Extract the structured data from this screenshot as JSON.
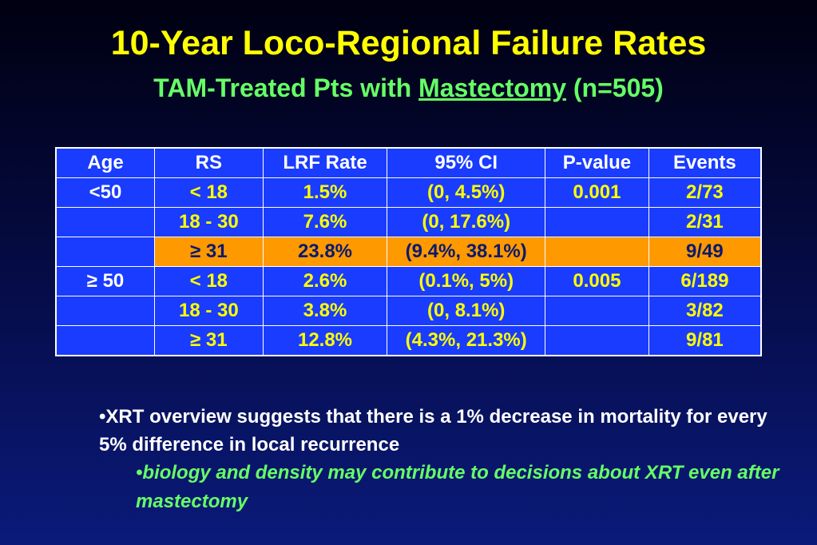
{
  "title": "10-Year Loco-Regional Failure Rates",
  "subtitle": {
    "prefix": "TAM-Treated Pts with ",
    "underlined": "Mastectomy",
    "suffix": " (n=505)"
  },
  "table": {
    "headers": [
      "Age",
      "RS",
      "LRF Rate",
      "95% CI",
      "P-value",
      "Events"
    ],
    "rows": [
      {
        "age": "<50",
        "rs": "< 18",
        "lrf": "1.5%",
        "ci": "(0, 4.5%)",
        "p": "0.001",
        "events": "2/73"
      },
      {
        "age": "",
        "rs": "18 - 30",
        "lrf": "7.6%",
        "ci": "(0, 17.6%)",
        "p": "",
        "events": "2/31"
      },
      {
        "age": "",
        "rs": "≥ 31",
        "lrf": "23.8%",
        "ci": "(9.4%, 38.1%)",
        "p": "",
        "events": "9/49"
      },
      {
        "age": "≥ 50",
        "rs": "< 18",
        "lrf": "2.6%",
        "ci": "(0.1%, 5%)",
        "p": "0.005",
        "events": "6/189"
      },
      {
        "age": "",
        "rs": "18 - 30",
        "lrf": "3.8%",
        "ci": "(0, 8.1%)",
        "p": "",
        "events": "3/82"
      },
      {
        "age": "",
        "rs": "≥ 31",
        "lrf": "12.8%",
        "ci": "(4.3%, 21.3%)",
        "p": "",
        "events": "9/81"
      }
    ],
    "highlight_color": "#ff9900",
    "cell_color": "#1a3cff"
  },
  "bullets": {
    "main": "•XRT overview suggests that there is a 1% decrease in mortality for every 5% difference in local recurrence",
    "sub": "•biology and density may contribute to decisions about XRT even after mastectomy"
  }
}
